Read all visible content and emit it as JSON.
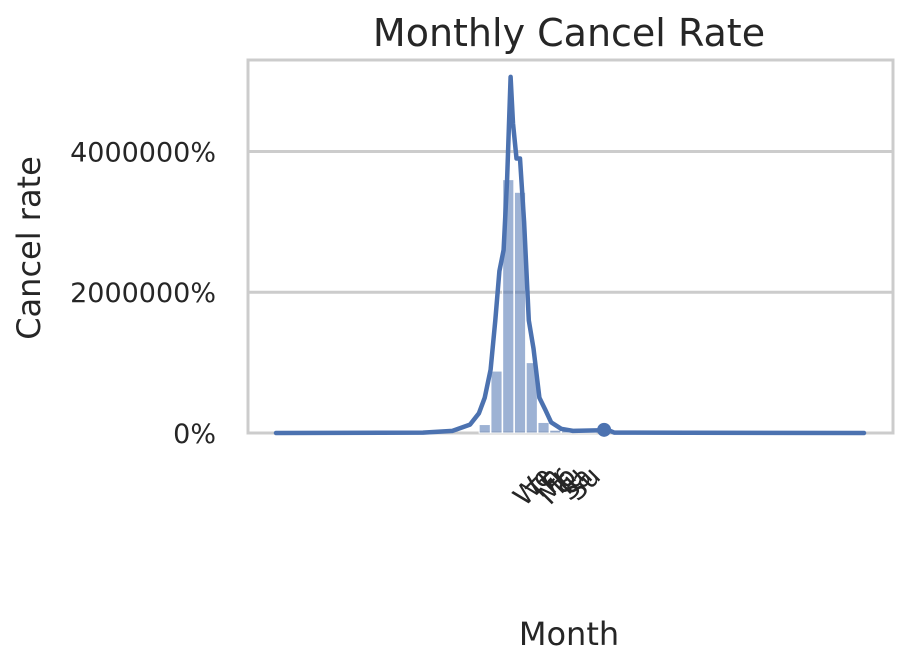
{
  "chart_data": {
    "type": "bar",
    "title": "Monthly Cancel Rate",
    "xlabel": "Month",
    "ylabel": "Cancel rate",
    "ylim": [
      0,
      5300000
    ],
    "y_tick_values": [
      0,
      2000000,
      4000000
    ],
    "y_tick_labels": [
      "0%",
      "2000000%",
      "4000000%"
    ],
    "grid": "horizontal",
    "colors": {
      "bars": "#4c72b0",
      "line": "#4c72b0",
      "grid": "#cccccc",
      "frame": "#cccccc",
      "text": "#262626"
    },
    "x_tick_labels": [
      "We",
      "Th",
      "Fr",
      "Mo",
      "Tu",
      "Sa",
      "Su"
    ],
    "x_range": [
      0,
      100
    ],
    "bars": [
      {
        "x": 35.5,
        "value": 120000
      },
      {
        "x": 37.5,
        "value": 880000
      },
      {
        "x": 39.5,
        "value": 3600000
      },
      {
        "x": 41.5,
        "value": 3420000
      },
      {
        "x": 43.5,
        "value": 1000000
      },
      {
        "x": 45.5,
        "value": 150000
      },
      {
        "x": 47.5,
        "value": 40000
      },
      {
        "x": 49.5,
        "value": 30000
      },
      {
        "x": 51.5,
        "value": 20000
      },
      {
        "x": 53.5,
        "value": 10000
      }
    ],
    "line_points": [
      {
        "x": 0,
        "value": 0
      },
      {
        "x": 25,
        "value": 5000
      },
      {
        "x": 30,
        "value": 30000
      },
      {
        "x": 33,
        "value": 120000
      },
      {
        "x": 34.5,
        "value": 280000
      },
      {
        "x": 35.5,
        "value": 500000
      },
      {
        "x": 36.5,
        "value": 900000
      },
      {
        "x": 37.3,
        "value": 1600000
      },
      {
        "x": 38,
        "value": 2300000
      },
      {
        "x": 38.7,
        "value": 2600000
      },
      {
        "x": 39.3,
        "value": 3600000
      },
      {
        "x": 39.9,
        "value": 5060000
      },
      {
        "x": 40.3,
        "value": 4400000
      },
      {
        "x": 40.9,
        "value": 3900000
      },
      {
        "x": 41.5,
        "value": 3900000
      },
      {
        "x": 42.2,
        "value": 3000000
      },
      {
        "x": 43,
        "value": 1600000
      },
      {
        "x": 43.8,
        "value": 1200000
      },
      {
        "x": 44.8,
        "value": 500000
      },
      {
        "x": 45.8,
        "value": 330000
      },
      {
        "x": 46.8,
        "value": 150000
      },
      {
        "x": 48.5,
        "value": 60000
      },
      {
        "x": 50.5,
        "value": 30000
      },
      {
        "x": 55.5,
        "value": 40000
      },
      {
        "x": 56.3,
        "value": 50000
      },
      {
        "x": 57.5,
        "value": 5000
      },
      {
        "x": 70,
        "value": 3000
      },
      {
        "x": 100,
        "value": 0
      }
    ],
    "marker_points": [
      {
        "x": 55.8,
        "value": 45000
      }
    ]
  }
}
